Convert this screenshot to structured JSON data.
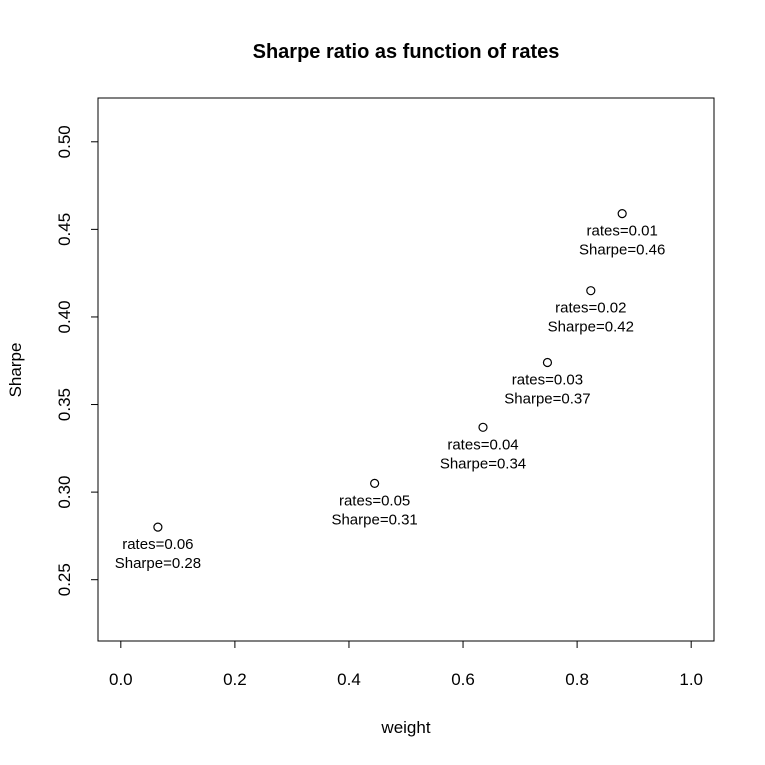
{
  "chart_data": {
    "type": "scatter",
    "title": "Sharpe ratio as function of rates",
    "xlabel": "weight",
    "ylabel": "Sharpe",
    "xlim": [
      -0.04,
      1.04
    ],
    "ylim": [
      0.215,
      0.525
    ],
    "xticks": [
      "0.0",
      "0.2",
      "0.4",
      "0.6",
      "0.8",
      "1.0"
    ],
    "yticks": [
      "0.25",
      "0.30",
      "0.35",
      "0.40",
      "0.45",
      "0.50"
    ],
    "grid": false,
    "points": [
      {
        "x": 0.065,
        "y": 0.28,
        "label_rate": "rates=0.06",
        "label_sharpe": "Sharpe=0.28"
      },
      {
        "x": 0.445,
        "y": 0.305,
        "label_rate": "rates=0.05",
        "label_sharpe": "Sharpe=0.31"
      },
      {
        "x": 0.635,
        "y": 0.337,
        "label_rate": "rates=0.04",
        "label_sharpe": "Sharpe=0.34"
      },
      {
        "x": 0.748,
        "y": 0.374,
        "label_rate": "rates=0.03",
        "label_sharpe": "Sharpe=0.37"
      },
      {
        "x": 0.824,
        "y": 0.415,
        "label_rate": "rates=0.02",
        "label_sharpe": "Sharpe=0.42"
      },
      {
        "x": 0.879,
        "y": 0.459,
        "label_rate": "rates=0.01",
        "label_sharpe": "Sharpe=0.46"
      }
    ]
  }
}
